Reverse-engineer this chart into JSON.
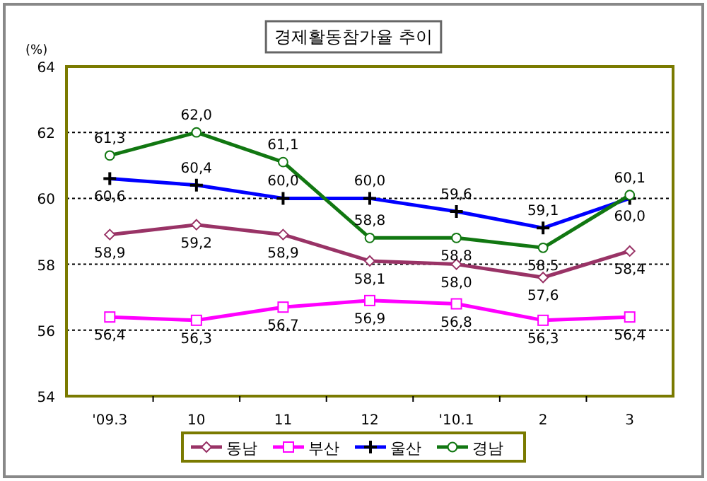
{
  "chart_data": {
    "type": "line",
    "title": "경제활동참가율 추이",
    "ylabel": "(%)",
    "categories": [
      "'09.3",
      "10",
      "11",
      "12",
      "'10.1",
      "2",
      "3"
    ],
    "ylim": [
      54,
      64
    ],
    "yticks": [
      54,
      56,
      58,
      60,
      62,
      64
    ],
    "grid": "y",
    "legend": "bottom",
    "series": [
      {
        "name": "동남",
        "color": "#993366",
        "marker": "diamond",
        "values": [
          58.9,
          59.2,
          58.9,
          58.1,
          58.0,
          57.6,
          58.4
        ],
        "value_labels": [
          "58,9",
          "59,2",
          "58,9",
          "58,1",
          "58,0",
          "57,6",
          "58,4"
        ]
      },
      {
        "name": "부산",
        "color": "#ff00ff",
        "marker": "square",
        "values": [
          56.4,
          56.3,
          56.7,
          56.9,
          56.8,
          56.3,
          56.4
        ],
        "value_labels": [
          "56,4",
          "56,3",
          "56,7",
          "56,9",
          "56,8",
          "56,3",
          "56,4"
        ]
      },
      {
        "name": "울산",
        "color": "#0000ff",
        "marker": "cross",
        "values": [
          60.6,
          60.4,
          60.0,
          60.0,
          59.6,
          59.1,
          60.0
        ],
        "value_labels": [
          "60,6",
          "60,4",
          "60,0",
          "60,0",
          "59,6",
          "59,1",
          "60,0"
        ]
      },
      {
        "name": "경남",
        "color": "#117711",
        "marker": "circle",
        "values": [
          61.3,
          62.0,
          61.1,
          58.8,
          58.8,
          58.5,
          60.1
        ],
        "value_labels": [
          "61,3",
          "62,0",
          "61,1",
          "58,8",
          "58,8",
          "58,5",
          "60,1"
        ]
      }
    ]
  }
}
